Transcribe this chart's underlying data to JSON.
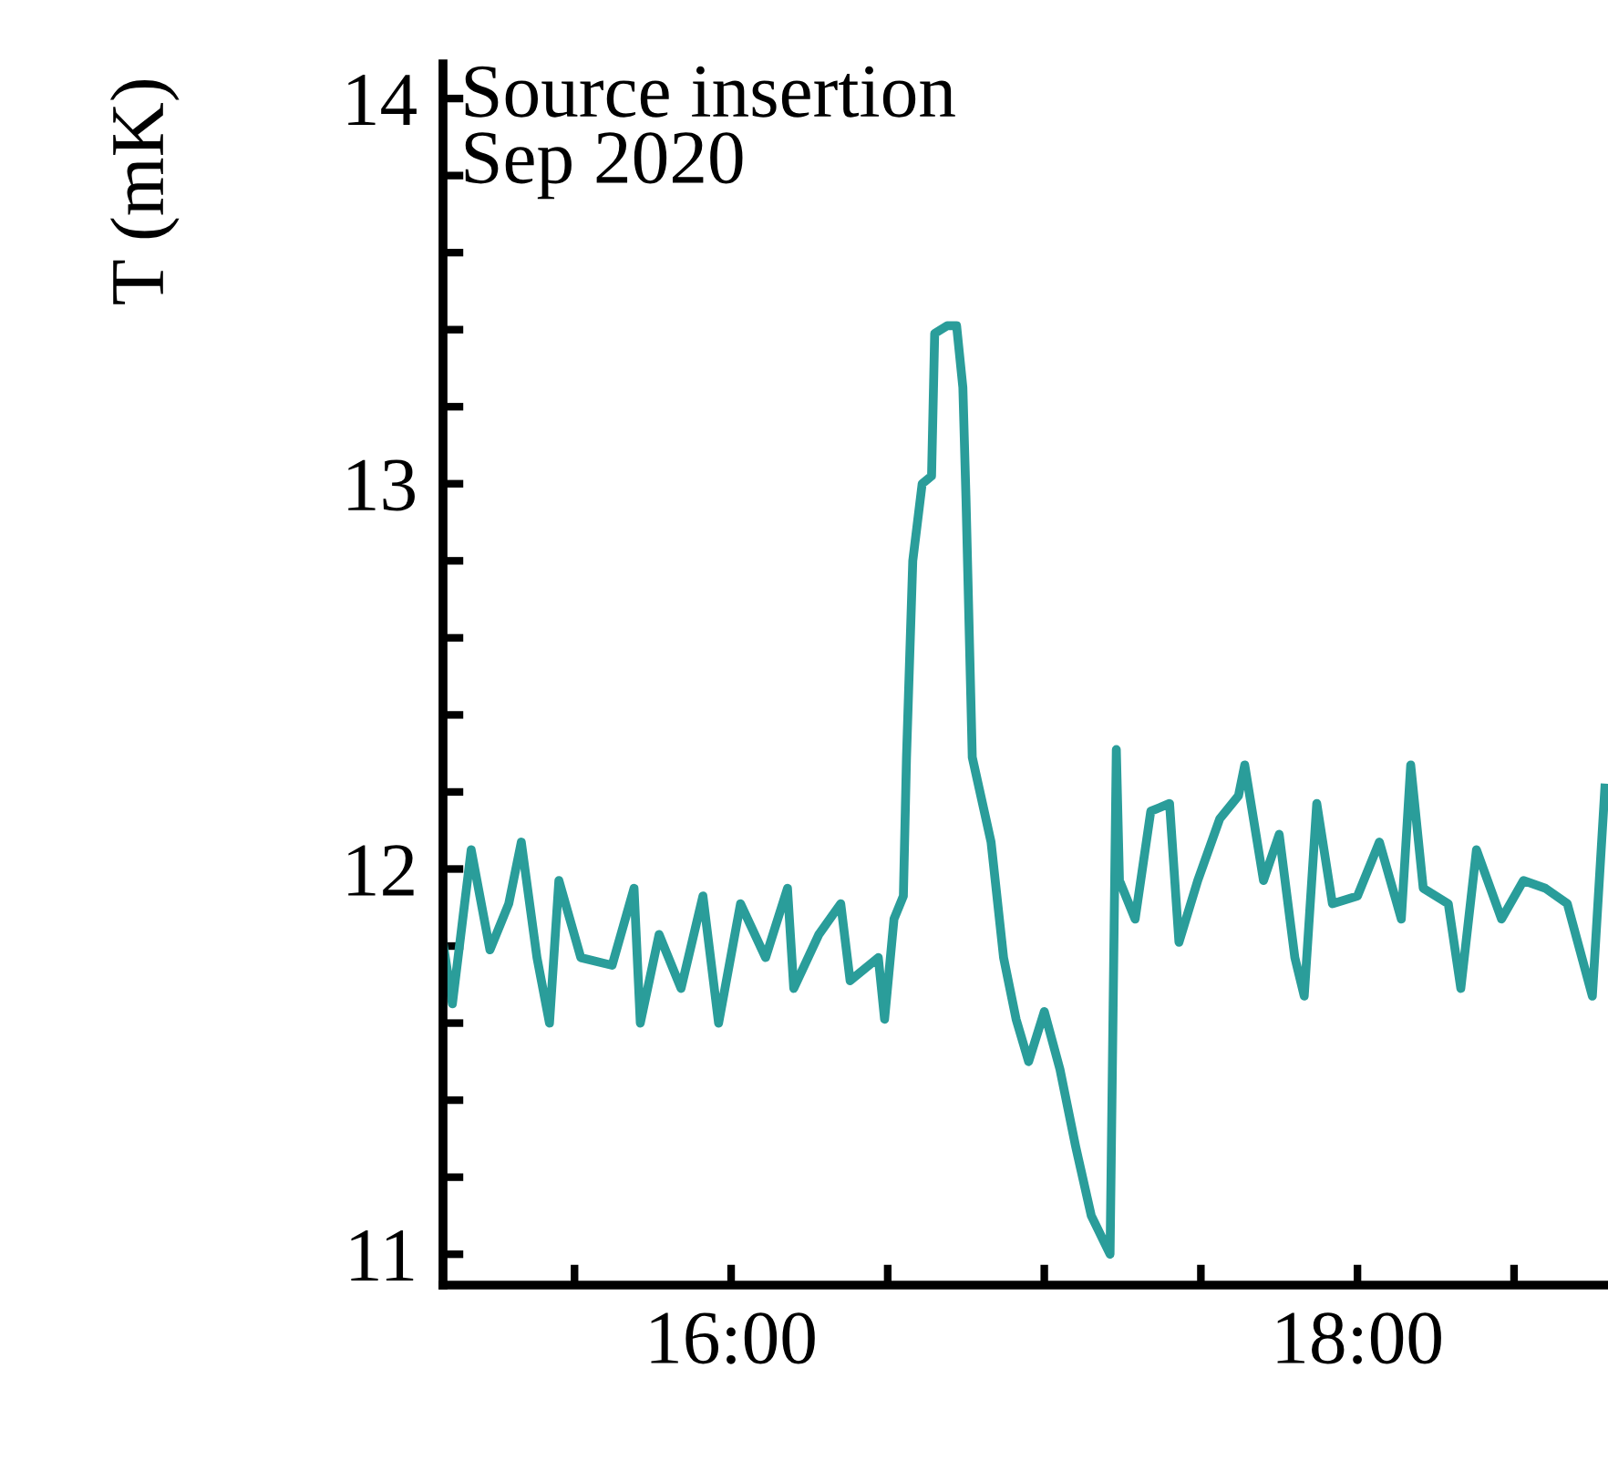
{
  "chart_data": {
    "type": "line",
    "ylabel": "T (mK)",
    "annotations": [
      "Source insertion\nSep 2020"
    ],
    "x": [
      15.08,
      15.11,
      15.17,
      15.23,
      15.29,
      15.33,
      15.38,
      15.42,
      15.45,
      15.52,
      15.62,
      15.69,
      15.71,
      15.77,
      15.84,
      15.91,
      15.96,
      16.03,
      16.11,
      16.18,
      16.2,
      16.28,
      16.35,
      16.38,
      16.47,
      16.49,
      16.52,
      16.55,
      16.56,
      16.58,
      16.61,
      16.64,
      16.65,
      16.69,
      16.72,
      16.74,
      16.75,
      16.77,
      16.83,
      16.87,
      16.91,
      16.95,
      17.0,
      17.05,
      17.1,
      17.15,
      17.21,
      17.23,
      17.24,
      17.29,
      17.34,
      17.4,
      17.43,
      17.49,
      17.56,
      17.62,
      17.64,
      17.7,
      17.75,
      17.8,
      17.83,
      17.87,
      17.92,
      18.0,
      18.07,
      18.14,
      18.17,
      18.21,
      18.29,
      18.33,
      18.38,
      18.46,
      18.53,
      18.6,
      18.67,
      18.75,
      18.79
    ],
    "series": [
      {
        "color": "#2a9d9a",
        "values": [
          11.81,
          11.65,
          12.05,
          11.79,
          11.91,
          12.07,
          11.77,
          11.6,
          11.97,
          11.77,
          11.75,
          11.95,
          11.6,
          11.83,
          11.69,
          11.93,
          11.6,
          11.91,
          11.77,
          11.95,
          11.69,
          11.83,
          11.91,
          11.71,
          11.77,
          11.61,
          11.87,
          11.93,
          12.29,
          12.8,
          13.0,
          13.02,
          13.39,
          13.41,
          13.41,
          13.25,
          12.96,
          12.29,
          12.07,
          11.77,
          11.61,
          11.5,
          11.63,
          11.48,
          11.28,
          11.1,
          11.0,
          12.31,
          11.97,
          11.87,
          12.15,
          12.17,
          11.81,
          11.97,
          12.13,
          12.19,
          12.27,
          11.97,
          12.09,
          11.77,
          11.67,
          12.17,
          11.91,
          11.93,
          12.07,
          11.87,
          12.27,
          11.95,
          11.91,
          11.69,
          12.05,
          11.87,
          11.97,
          11.95,
          11.91,
          11.67,
          12.21
        ]
      }
    ],
    "xlim": [
      15.08,
      18.8
    ],
    "xticks": [
      {
        "value": 15.5,
        "label": null
      },
      {
        "value": 16,
        "label": "16:00"
      },
      {
        "value": 16.5,
        "label": null
      },
      {
        "value": 17,
        "label": null
      },
      {
        "value": 17.5,
        "label": null
      },
      {
        "value": 18,
        "label": "18:00"
      },
      {
        "value": 18.5,
        "label": null
      }
    ],
    "ylim": [
      10.92,
      14.09
    ],
    "yticks": [
      11,
      {
        "value": 11.2,
        "label": null
      },
      {
        "value": 11.4,
        "label": null
      },
      {
        "value": 11.6,
        "label": null
      },
      {
        "value": 11.8,
        "label": null
      },
      12,
      {
        "value": 12.2,
        "label": null
      },
      {
        "value": 12.4,
        "label": null
      },
      {
        "value": 12.6,
        "label": null
      },
      {
        "value": 12.8,
        "label": null
      },
      13,
      {
        "value": 13.2,
        "label": null
      },
      {
        "value": 13.4,
        "label": null
      },
      {
        "value": 13.6,
        "label": null
      },
      {
        "value": 13.8,
        "label": null
      },
      14
    ],
    "grid": false,
    "marker": "none",
    "line_style": "solid"
  }
}
